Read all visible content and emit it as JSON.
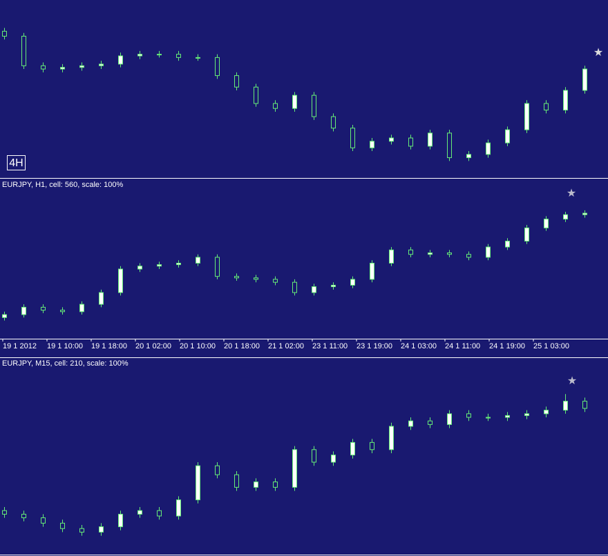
{
  "type": "candlestick",
  "up_color": "#ffffff",
  "down_color": "#191970",
  "wick_color": "#66ee77",
  "panels": [
    {
      "badge": "4H",
      "ylim": [
        0,
        100
      ],
      "ohlc": [
        [
          86,
          88,
          81,
          83
        ],
        [
          83,
          85,
          63,
          65
        ],
        [
          65,
          67,
          61,
          63
        ],
        [
          63,
          66,
          61,
          64
        ],
        [
          64,
          67,
          62,
          65
        ],
        [
          65,
          68,
          63,
          66
        ],
        [
          66,
          73,
          64,
          71
        ],
        [
          71,
          74,
          69,
          72
        ],
        [
          72,
          74,
          70,
          72
        ],
        [
          72,
          74,
          68,
          70
        ],
        [
          70,
          72,
          68,
          70
        ],
        [
          70,
          72,
          57,
          59
        ],
        [
          59,
          61,
          50,
          52
        ],
        [
          52,
          54,
          40,
          42
        ],
        [
          42,
          44,
          37,
          39
        ],
        [
          39,
          49,
          37,
          47
        ],
        [
          47,
          49,
          32,
          34
        ],
        [
          34,
          36,
          25,
          27
        ],
        [
          27,
          29,
          13,
          15
        ],
        [
          15,
          21,
          13,
          19
        ],
        [
          19,
          23,
          17,
          21
        ],
        [
          21,
          23,
          14,
          16
        ],
        [
          16,
          26,
          14,
          24
        ],
        [
          24,
          26,
          7,
          9
        ],
        [
          9,
          13,
          7,
          11
        ],
        [
          11,
          20,
          9,
          18
        ],
        [
          18,
          28,
          16,
          26
        ],
        [
          26,
          44,
          24,
          42
        ],
        [
          42,
          44,
          36,
          38
        ],
        [
          38,
          52,
          36,
          50
        ],
        [
          50,
          65,
          48,
          63
        ]
      ]
    },
    {
      "title": "EURJPY, H1, cell: 560, scale: 100%",
      "ylim": [
        0,
        100
      ],
      "x_labels": [
        "19 1 2012",
        "19 1 10:00",
        "19 1 18:00",
        "20 1 02:00",
        "20 1 10:00",
        "20 1 18:00",
        "21 1 02:00",
        "23 1 11:00",
        "23 1 19:00",
        "24 1 03:00",
        "24 1 11:00",
        "24 1 19:00",
        "25 1 03:00"
      ],
      "ohlc": [
        [
          13,
          17,
          11,
          15
        ],
        [
          15,
          22,
          13,
          20
        ],
        [
          20,
          22,
          16,
          18
        ],
        [
          18,
          20,
          15,
          17
        ],
        [
          17,
          24,
          15,
          22
        ],
        [
          22,
          32,
          20,
          30
        ],
        [
          30,
          48,
          28,
          46
        ],
        [
          46,
          50,
          44,
          48
        ],
        [
          48,
          51,
          46,
          49
        ],
        [
          49,
          52,
          47,
          50
        ],
        [
          50,
          56,
          48,
          54
        ],
        [
          54,
          56,
          39,
          41
        ],
        [
          41,
          43,
          38,
          40
        ],
        [
          40,
          42,
          37,
          39
        ],
        [
          39,
          41,
          35,
          37
        ],
        [
          37,
          39,
          28,
          30
        ],
        [
          30,
          36,
          28,
          34
        ],
        [
          34,
          37,
          32,
          35
        ],
        [
          35,
          41,
          33,
          39
        ],
        [
          39,
          52,
          37,
          50
        ],
        [
          50,
          61,
          48,
          59
        ],
        [
          59,
          61,
          54,
          56
        ],
        [
          56,
          59,
          54,
          57
        ],
        [
          57,
          59,
          54,
          56
        ],
        [
          56,
          58,
          52,
          54
        ],
        [
          54,
          63,
          52,
          61
        ],
        [
          61,
          67,
          59,
          65
        ],
        [
          65,
          76,
          63,
          74
        ],
        [
          74,
          82,
          72,
          80
        ],
        [
          80,
          85,
          78,
          83
        ],
        [
          83,
          86,
          81,
          84
        ]
      ]
    },
    {
      "title": "EURJPY, M15, cell: 210, scale: 100%",
      "ylim": [
        0,
        100
      ],
      "ohlc": [
        [
          23,
          25,
          19,
          21
        ],
        [
          21,
          23,
          17,
          19
        ],
        [
          19,
          21,
          14,
          16
        ],
        [
          16,
          18,
          11,
          13
        ],
        [
          13,
          15,
          9,
          11
        ],
        [
          11,
          16,
          9,
          14
        ],
        [
          14,
          23,
          12,
          21
        ],
        [
          21,
          25,
          19,
          23
        ],
        [
          23,
          25,
          18,
          20
        ],
        [
          20,
          31,
          18,
          29
        ],
        [
          29,
          50,
          27,
          48
        ],
        [
          48,
          50,
          41,
          43
        ],
        [
          43,
          45,
          34,
          36
        ],
        [
          36,
          41,
          34,
          39
        ],
        [
          39,
          41,
          34,
          36
        ],
        [
          36,
          59,
          34,
          57
        ],
        [
          57,
          59,
          48,
          50
        ],
        [
          50,
          56,
          48,
          54
        ],
        [
          54,
          63,
          52,
          61
        ],
        [
          61,
          63,
          55,
          57
        ],
        [
          57,
          72,
          55,
          70
        ],
        [
          70,
          75,
          68,
          73
        ],
        [
          73,
          75,
          69,
          71
        ],
        [
          71,
          79,
          69,
          77
        ],
        [
          77,
          79,
          73,
          75
        ],
        [
          75,
          77,
          73,
          75
        ],
        [
          75,
          78,
          73,
          76
        ],
        [
          76,
          79,
          74,
          77
        ],
        [
          77,
          81,
          75,
          79
        ],
        [
          79,
          88,
          77,
          84
        ],
        [
          84,
          86,
          78,
          80
        ]
      ]
    }
  ]
}
